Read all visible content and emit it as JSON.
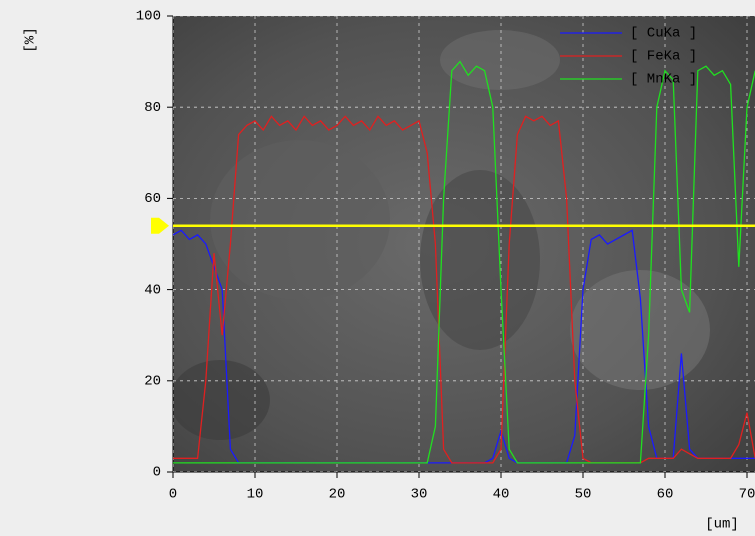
{
  "chart_data": {
    "type": "line",
    "x_label": "[um]",
    "y_label": "[%]",
    "xlim": [
      0,
      71
    ],
    "ylim": [
      0,
      100
    ],
    "xticks": [
      0,
      10,
      20,
      30,
      40,
      50,
      60,
      70
    ],
    "yticks": [
      0,
      20,
      40,
      60,
      80,
      100
    ],
    "grid": true,
    "legend": "top-right",
    "cursor": {
      "value": 54,
      "color": "#ffff00"
    },
    "x": [
      0,
      1,
      2,
      3,
      4,
      5,
      6,
      7,
      8,
      9,
      10,
      11,
      12,
      13,
      14,
      15,
      16,
      17,
      18,
      19,
      20,
      21,
      22,
      23,
      24,
      25,
      26,
      27,
      28,
      29,
      30,
      31,
      32,
      33,
      34,
      35,
      36,
      37,
      38,
      39,
      40,
      41,
      42,
      43,
      44,
      45,
      46,
      47,
      48,
      49,
      50,
      51,
      52,
      53,
      54,
      55,
      56,
      57,
      58,
      59,
      60,
      61,
      62,
      63,
      64,
      65,
      66,
      67,
      68,
      69,
      70,
      71
    ],
    "series": [
      {
        "name": "[ CuKa ]",
        "color": "#1a1aff",
        "values": [
          52,
          53,
          51,
          52,
          50,
          45,
          40,
          5,
          2,
          2,
          2,
          2,
          2,
          2,
          2,
          2,
          2,
          2,
          2,
          2,
          2,
          2,
          2,
          2,
          2,
          2,
          2,
          2,
          2,
          2,
          2,
          2,
          2,
          2,
          2,
          2,
          2,
          2,
          2,
          3,
          9,
          3,
          2,
          2,
          2,
          2,
          2,
          2,
          2,
          8,
          40,
          51,
          52,
          50,
          51,
          52,
          53,
          38,
          10,
          3,
          3,
          3,
          26,
          5,
          3,
          3,
          3,
          3,
          3,
          3,
          3,
          3
        ]
      },
      {
        "name": "[ FeKa ]",
        "color": "#e02020",
        "values": [
          3,
          3,
          3,
          3,
          20,
          48,
          30,
          50,
          74,
          76,
          77,
          75,
          78,
          76,
          77,
          75,
          78,
          76,
          77,
          75,
          76,
          78,
          76,
          77,
          75,
          78,
          76,
          77,
          75,
          76,
          77,
          70,
          50,
          5,
          2,
          2,
          2,
          2,
          2,
          2,
          5,
          50,
          74,
          78,
          77,
          78,
          76,
          77,
          60,
          20,
          3,
          2,
          2,
          2,
          2,
          2,
          2,
          2,
          3,
          3,
          3,
          3,
          5,
          4,
          3,
          3,
          3,
          3,
          3,
          6,
          13,
          3
        ]
      },
      {
        "name": "[ MnKa ]",
        "color": "#20e020",
        "values": [
          2,
          2,
          2,
          2,
          2,
          2,
          2,
          2,
          2,
          2,
          2,
          2,
          2,
          2,
          2,
          2,
          2,
          2,
          2,
          2,
          2,
          2,
          2,
          2,
          2,
          2,
          2,
          2,
          2,
          2,
          2,
          2,
          10,
          60,
          88,
          90,
          87,
          89,
          88,
          80,
          40,
          5,
          2,
          2,
          2,
          2,
          2,
          2,
          2,
          2,
          2,
          2,
          2,
          2,
          2,
          2,
          2,
          2,
          30,
          80,
          88,
          86,
          40,
          35,
          88,
          89,
          87,
          88,
          85,
          45,
          80,
          88
        ]
      }
    ]
  }
}
